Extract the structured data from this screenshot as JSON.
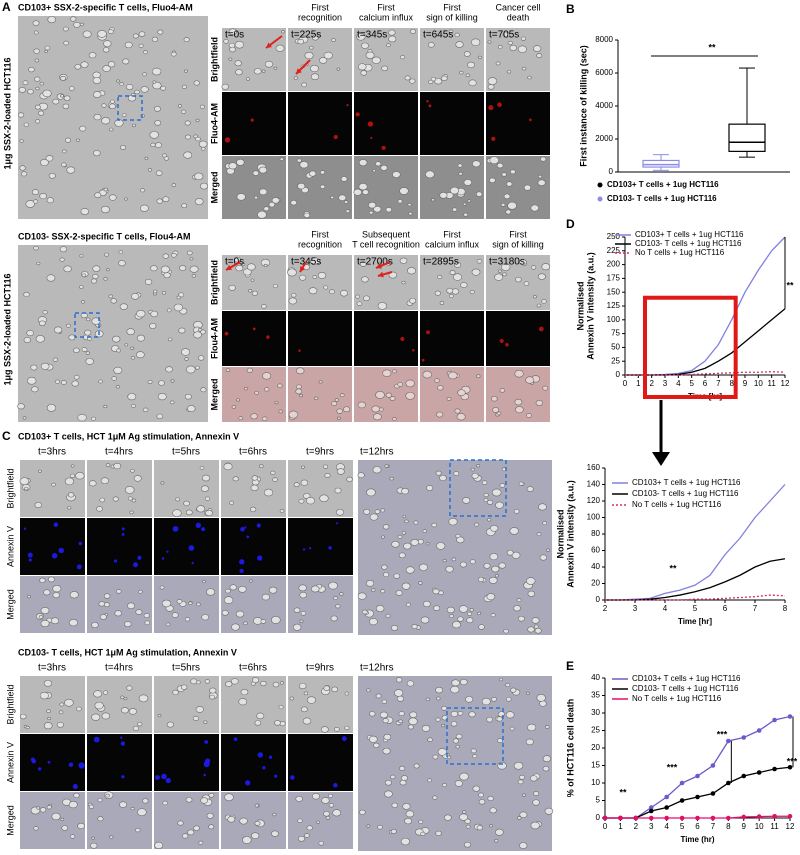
{
  "panel_labels": [
    "A",
    "B",
    "C",
    "D",
    "E"
  ],
  "panel_a": {
    "top": {
      "title": "CD103+ SSX-2-specific T cells, Fluo4-AM",
      "side_label": "1μg SSX-2-loaded HCT116",
      "headers": [
        [
          "First",
          "recognition"
        ],
        [
          "First",
          "calcium influx"
        ],
        [
          "First",
          "sign of killing"
        ],
        [
          "Cancer cell",
          "death"
        ]
      ],
      "times": [
        "t=0s",
        "t=225s",
        "t=345s",
        "t=645s",
        "t=705s"
      ],
      "rows": [
        "Brightfield",
        "Fluo4-AM",
        "Merged"
      ]
    },
    "bottom": {
      "title": "CD103- SSX-2-specific T cells, Flou4-AM",
      "side_label": "1μg SSX-2-loaded HCT116",
      "headers": [
        [
          "First",
          "recognition"
        ],
        [
          "Subsequent",
          "T cell recognition"
        ],
        [
          "First",
          "calcium influx"
        ],
        [
          "First",
          "sign of killing"
        ]
      ],
      "times": [
        "t=0s",
        "t=345s",
        "t=2700s",
        "t=2895s",
        "t=3180s"
      ],
      "rows": [
        "Brightfield",
        "Flou4-AM",
        "Merged"
      ]
    }
  },
  "panel_c": {
    "top": {
      "title": "CD103+ T cells, HCT 1μM Ag stimulation, Annexin V",
      "times": [
        "t=3hrs",
        "t=4hrs",
        "t=5hrs",
        "t=6hrs",
        "t=9hrs",
        "t=12hrs"
      ],
      "rows": [
        "Brightfield",
        "Annexin V",
        "Merged"
      ]
    },
    "bottom": {
      "title": "CD103- T cells, HCT 1μM Ag stimulation, Annexin V",
      "times": [
        "t=3hrs",
        "t=4hrs",
        "t=5hrs",
        "t=6hrs",
        "t=9hrs",
        "t=12hrs"
      ],
      "rows": [
        "Brightfield",
        "Annexin V",
        "Merged"
      ]
    }
  },
  "chart_data": [
    {
      "type": "box",
      "ylabel": [
        "First instance of killing (sec)"
      ],
      "ylim": [
        0,
        8000
      ],
      "yticks": [
        0,
        2000,
        4000,
        6000,
        8000
      ],
      "annotations": [
        "**"
      ],
      "series": [
        {
          "name": "CD103+ T cells + 1ug HCT116",
          "color": "#000000",
          "min": 900,
          "q1": 1250,
          "median": 1800,
          "q3": 2900,
          "max": 6300
        },
        {
          "name": "CD103- T cells + 1ug HCT116",
          "color": "#8c8ce6",
          "min": 100,
          "q1": 300,
          "median": 450,
          "q3": 700,
          "max": 1050
        }
      ]
    },
    {
      "type": "line",
      "ylabel": [
        "Normalised",
        "Annexin V intensity (a.u.)"
      ],
      "xlabel": "Time [hr]",
      "xlim": [
        0,
        12
      ],
      "xticks": [
        0,
        1,
        2,
        3,
        4,
        5,
        6,
        7,
        8,
        9,
        10,
        11,
        12
      ],
      "ylim": [
        0,
        250
      ],
      "yticks": [
        0,
        25,
        50,
        75,
        100,
        125,
        150,
        175,
        200,
        225,
        250
      ],
      "annotations": [
        "**"
      ],
      "x": [
        0,
        1,
        2,
        3,
        4,
        5,
        6,
        7,
        8,
        9,
        10,
        11,
        12
      ],
      "series": [
        {
          "name": "CD103+ T cells + 1ug HCT116",
          "color": "#8080e0",
          "values": [
            0,
            0,
            0,
            1,
            3,
            8,
            25,
            55,
            100,
            150,
            190,
            225,
            250
          ]
        },
        {
          "name": "CD103- T cells + 1ug HCT116",
          "color": "#000000",
          "values": [
            0,
            0,
            0,
            0,
            1,
            5,
            12,
            25,
            40,
            60,
            80,
            100,
            120
          ]
        },
        {
          "name": "No T cells + 1ug HCT116",
          "color": "#d03060",
          "dashed": true,
          "values": [
            0,
            0,
            0,
            0,
            0,
            1,
            2,
            3,
            4,
            5,
            5,
            6,
            5
          ]
        }
      ]
    },
    {
      "type": "line",
      "ylabel": [
        "Normalised",
        "Annexin V intensity (a.u.)"
      ],
      "xlabel": "Time [hr]",
      "xlim": [
        2,
        8
      ],
      "xticks": [
        2,
        3,
        4,
        5,
        6,
        7,
        8
      ],
      "ylim": [
        0,
        160
      ],
      "yticks": [
        0,
        20,
        40,
        60,
        80,
        100,
        120,
        140,
        160
      ],
      "annotations": [
        "**"
      ],
      "x": [
        2,
        2.5,
        3,
        3.5,
        4,
        4.5,
        5,
        5.5,
        6,
        6.5,
        7,
        7.5,
        8
      ],
      "series": [
        {
          "name": "CD103+ T cells + 1ug HCT116",
          "color": "#8080e0",
          "values": [
            0,
            0,
            1,
            2,
            8,
            12,
            18,
            30,
            55,
            75,
            100,
            120,
            140
          ]
        },
        {
          "name": "CD103- T cells + 1ug HCT116",
          "color": "#000000",
          "values": [
            0,
            0,
            0,
            1,
            3,
            6,
            10,
            15,
            22,
            30,
            40,
            47,
            50
          ]
        },
        {
          "name": "No T cells + 1ug HCT116",
          "color": "#d03060",
          "dashed": true,
          "values": [
            0,
            0,
            0,
            0,
            0,
            0,
            1,
            1,
            2,
            3,
            4,
            6,
            5
          ]
        }
      ]
    },
    {
      "type": "line",
      "markers": true,
      "ylabel": [
        "% of HCT116 cell death"
      ],
      "xlabel": "Time (hr)",
      "xlim": [
        0,
        12
      ],
      "xticks": [
        0,
        1,
        2,
        3,
        4,
        5,
        6,
        7,
        8,
        9,
        10,
        11,
        12
      ],
      "ylim": [
        0,
        40
      ],
      "yticks": [
        0,
        5,
        10,
        15,
        20,
        25,
        30,
        35,
        40
      ],
      "annotations": [
        "**",
        "***",
        "***",
        "***"
      ],
      "x": [
        0,
        1,
        2,
        3,
        4,
        5,
        6,
        7,
        8,
        9,
        10,
        11,
        12
      ],
      "series": [
        {
          "name": "CD103+ T cells + 1ug HCT116",
          "color": "#6a5acd",
          "values": [
            0,
            0,
            0,
            3,
            6,
            10,
            12,
            15,
            22,
            23,
            25,
            28,
            29
          ]
        },
        {
          "name": "CD103- T cells + 1ug HCT116",
          "color": "#000000",
          "values": [
            0,
            0,
            0,
            2,
            3,
            5,
            6,
            7,
            10,
            12,
            13,
            14,
            14.5
          ]
        },
        {
          "name": "No T cells + 1ug HCT116",
          "color": "#e0106a",
          "values": [
            0,
            0,
            0,
            0,
            0,
            0,
            0,
            0,
            0,
            0.3,
            0.4,
            0.5,
            0.5
          ]
        }
      ]
    }
  ]
}
